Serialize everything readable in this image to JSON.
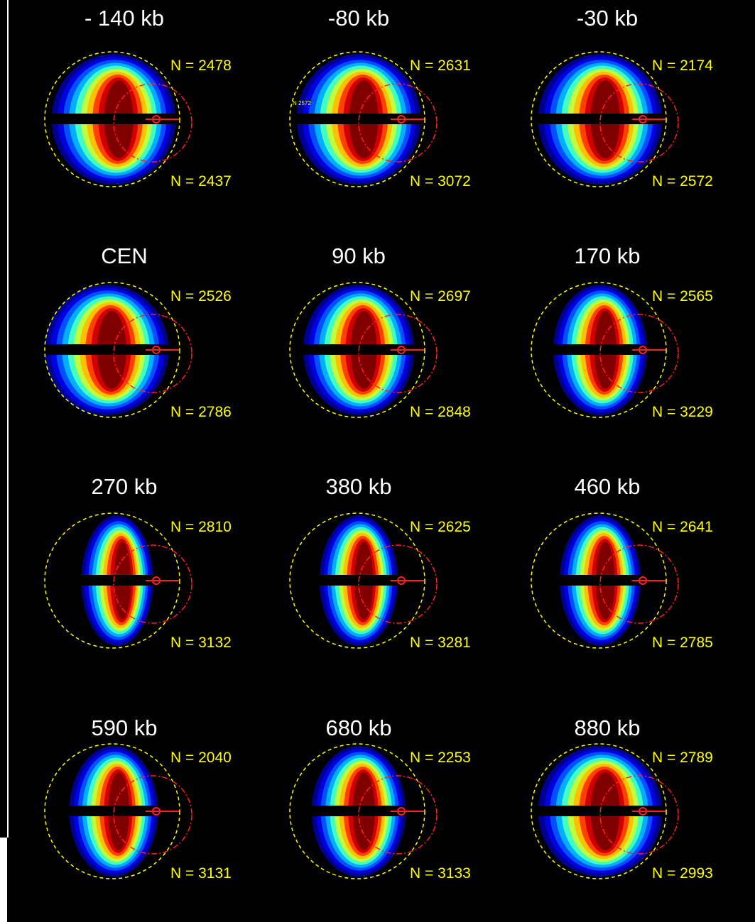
{
  "panels": [
    {
      "label": "- 140 kb",
      "n_top": "N = 2478",
      "n_bottom": "N = 2437"
    },
    {
      "label": "-80 kb",
      "n_top": "N = 2631",
      "n_bottom": "N = 3072",
      "overlay": "N 2572"
    },
    {
      "label": "-30 kb",
      "n_top": "N = 2174",
      "n_bottom": "N = 2572"
    },
    {
      "label": "CEN",
      "n_top": "N = 2526",
      "n_bottom": "N = 2786"
    },
    {
      "label": "90 kb",
      "n_top": "N = 2697",
      "n_bottom": "N = 2848"
    },
    {
      "label": "170 kb",
      "n_top": "N = 2565",
      "n_bottom": "N = 3229"
    },
    {
      "label": "270 kb",
      "n_top": "N = 2810",
      "n_bottom": "N = 3132"
    },
    {
      "label": "380 kb",
      "n_top": "N = 2625",
      "n_bottom": "N = 3281"
    },
    {
      "label": "460 kb",
      "n_top": "N = 2641",
      "n_bottom": "N = 2785"
    },
    {
      "label": "590 kb",
      "n_top": "N = 2040",
      "n_bottom": "N = 3131"
    },
    {
      "label": "680 kb",
      "n_top": "N = 2253",
      "n_bottom": "N = 3133"
    },
    {
      "label": "880 kb",
      "n_top": "N = 2789",
      "n_bottom": "N = 2993"
    }
  ]
}
